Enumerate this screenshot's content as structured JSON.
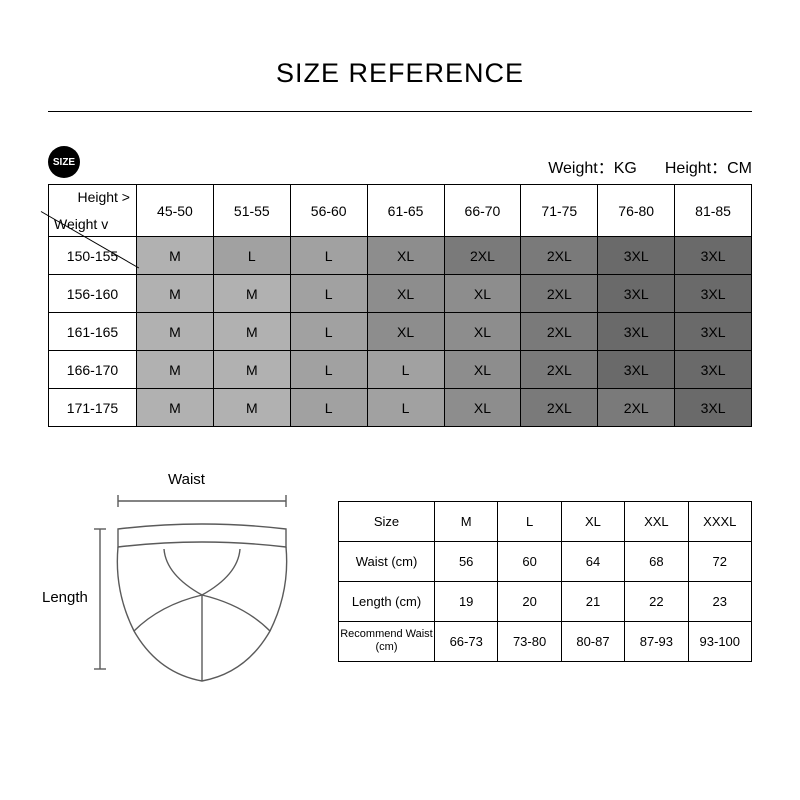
{
  "title": "SIZE REFERENCE",
  "sizeIcon": "SIZE",
  "units": {
    "weight": "Weight：KG",
    "height": "Height：CM"
  },
  "mainTable": {
    "corner": {
      "heightLabel": "Height >",
      "weightLabel": "Weight v"
    },
    "weightCols": [
      "45-50",
      "51-55",
      "56-60",
      "61-65",
      "66-70",
      "71-75",
      "76-80",
      "81-85"
    ],
    "heightRows": [
      "150-155",
      "156-160",
      "161-165",
      "166-170",
      "171-175"
    ],
    "cells": [
      [
        "M",
        "L",
        "L",
        "XL",
        "2XL",
        "2XL",
        "3XL",
        "3XL"
      ],
      [
        "M",
        "M",
        "L",
        "XL",
        "XL",
        "2XL",
        "3XL",
        "3XL"
      ],
      [
        "M",
        "M",
        "L",
        "XL",
        "XL",
        "2XL",
        "3XL",
        "3XL"
      ],
      [
        "M",
        "M",
        "L",
        "L",
        "XL",
        "2XL",
        "3XL",
        "3XL"
      ],
      [
        "M",
        "M",
        "L",
        "L",
        "XL",
        "2XL",
        "2XL",
        "3XL"
      ]
    ],
    "cellColors": {
      "M": "#b1b1b1",
      "L": "#a1a1a1",
      "XL": "#8d8d8d",
      "2XL": "#7a7a7a",
      "3XL": "#6a6a6a"
    },
    "cellTextColor": "#000000",
    "headerBg": "#ffffff",
    "borderColor": "#000000",
    "rowHeightPx": 38,
    "headerHeightPx": 52,
    "fontSizePx": 14
  },
  "diagram": {
    "waistLabel": "Waist",
    "lengthLabel": "Length",
    "strokeColor": "#5a5a5a",
    "strokeWidth": 1.4,
    "arrowColor": "#5a5a5a"
  },
  "measTable": {
    "header": [
      "Size",
      "M",
      "L",
      "XL",
      "XXL",
      "XXXL"
    ],
    "rows": [
      {
        "label": "Waist (cm)",
        "values": [
          "56",
          "60",
          "64",
          "68",
          "72"
        ]
      },
      {
        "label": "Length (cm)",
        "values": [
          "19",
          "20",
          "21",
          "22",
          "23"
        ]
      },
      {
        "label": "Recommend Waist (cm)",
        "values": [
          "66-73",
          "73-80",
          "80-87",
          "87-93",
          "93-100"
        ]
      }
    ],
    "borderColor": "#000000",
    "rowHeightPx": 40,
    "fontSizePx": 13
  }
}
